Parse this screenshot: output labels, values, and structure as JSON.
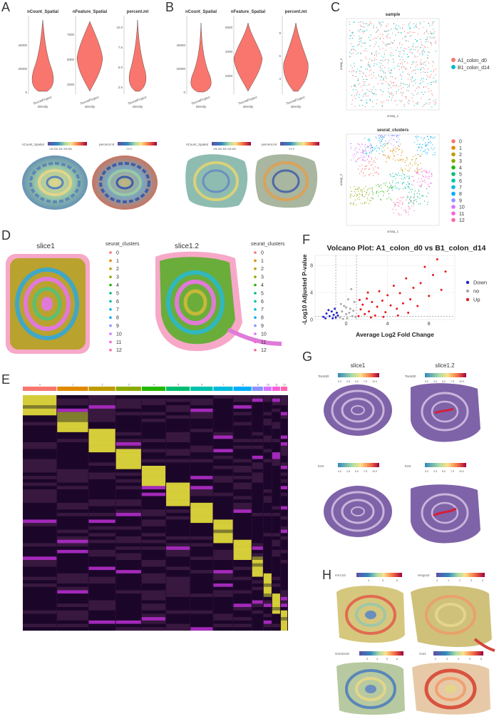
{
  "panels": {
    "A": {
      "letter": "A",
      "violins": [
        {
          "title": "nCount_Spatial",
          "ticks": [
            "40000",
            "20000",
            "0"
          ],
          "xtick": "SeuratProject"
        },
        {
          "title": "nFeature_Spatial",
          "ticks": [
            "7500",
            "5000",
            "2500"
          ],
          "xtick": "SeuratProject"
        },
        {
          "title": "percent.mt",
          "ticks": [
            "10.0",
            "7.5",
            "5.0",
            "2.5"
          ],
          "xtick": "SeuratProject"
        }
      ],
      "xlabel": "Identity",
      "spatial": [
        {
          "legend_title": "nCount_Spatial",
          "legend_ticks": "10k 20k 30k 40k 50k"
        },
        {
          "legend_title": "percent.mt",
          "legend_ticks": "3   6   9"
        }
      ]
    },
    "B": {
      "letter": "B",
      "violins": [
        {
          "title": "nCount_Spatial",
          "ticks": [
            "40000",
            "20000",
            "0"
          ],
          "xtick": "SeuratProject"
        },
        {
          "title": "nFeature_Spatial",
          "ticks": [
            "6000",
            "4000",
            "2000"
          ],
          "xtick": "SeuratProject"
        },
        {
          "title": "percent.mt",
          "ticks": [
            "9",
            "6",
            "3"
          ],
          "xtick": "SeuratProject"
        }
      ],
      "xlabel": "Identity",
      "spatial": [
        {
          "legend_title": "nCount_Spatial",
          "legend_ticks": "10k 20k 30k 40k 50k"
        },
        {
          "legend_title": "percent.mt",
          "legend_ticks": "3   6   9"
        }
      ]
    },
    "C": {
      "letter": "C",
      "top_title": "sample",
      "top_legend": [
        "A1_colon_d0",
        "B1_colon_d14"
      ],
      "top_colors": [
        "#f8766d",
        "#00bfc4"
      ],
      "bottom_title": "seurat_clusters",
      "clusters": [
        "0",
        "1",
        "2",
        "3",
        "4",
        "5",
        "6",
        "7",
        "8",
        "9",
        "10",
        "11",
        "12"
      ],
      "cluster_colors": [
        "#f8766d",
        "#e18a00",
        "#be9c00",
        "#8cab00",
        "#24b700",
        "#00be70",
        "#00c1ab",
        "#00bbda",
        "#00acfc",
        "#8b93ff",
        "#d575fe",
        "#f962dd",
        "#ff65ac"
      ],
      "xlabel": "umap_1",
      "ylabel": "umap_2",
      "xticks": [
        "-5",
        "0",
        "5"
      ],
      "yticks": [
        "4",
        "2",
        "0",
        "-2",
        "-4"
      ]
    },
    "D": {
      "letter": "D",
      "slices": [
        {
          "title": "slice1",
          "legend_title": "seurat_clusters"
        },
        {
          "title": "slice1.2",
          "legend_title": "seurat_clusters"
        }
      ]
    },
    "E": {
      "letter": "E",
      "header_labels": [
        "0",
        "1",
        "2",
        "3",
        "4",
        "5",
        "6",
        "7",
        "8",
        "9",
        "10",
        "11",
        "12"
      ]
    },
    "F": {
      "letter": "F",
      "legend": [
        "Down",
        "no",
        "Up"
      ],
      "legend_colors": [
        "#2222cc",
        "#aaaaaa",
        "#e8191c"
      ]
    },
    "G": {
      "letter": "G",
      "slices": [
        "slice1",
        "slice1.2"
      ],
      "genes": [
        {
          "name": "Tacstd2",
          "ticks": [
            "0.0",
            "2.5",
            "5.0",
            "7.5",
            "10.0"
          ]
        },
        {
          "name": "Krt4",
          "ticks": [
            "0.0",
            "2.5",
            "5.0",
            "7.5",
            "10.0"
          ]
        }
      ]
    },
    "H": {
      "letter": "H",
      "genes": [
        {
          "name": "mt-Co3",
          "ticks": [
            "4",
            "5",
            "6"
          ]
        },
        {
          "name": "Hmgcs2",
          "ticks": [
            "0",
            "1",
            "2",
            "3",
            "4"
          ]
        },
        {
          "name": "Gm42418",
          "ticks": [
            "3",
            "4",
            "5",
            "6"
          ]
        },
        {
          "name": "Car1",
          "ticks": [
            "2",
            "3",
            "4",
            "5",
            "6"
          ]
        }
      ]
    }
  },
  "chart_data": {
    "type": "scatter",
    "title": "Volcano Plot: A1_colon_d0 vs B1_colon_d14",
    "xlabel": "Average Log2 Fold Change",
    "ylabel": "-Log10 Adjusted P-value",
    "xlim": [
      -3,
      10.5
    ],
    "ylim": [
      0,
      9.5
    ],
    "xticks": [
      0,
      4,
      8
    ],
    "yticks": [
      0,
      4,
      8
    ],
    "legend_position": "right",
    "series": [
      {
        "name": "Down",
        "color": "#2222cc",
        "points": [
          [
            -2.2,
            0.4
          ],
          [
            -1.9,
            0.9
          ],
          [
            -1.6,
            0.5
          ],
          [
            -1.4,
            1.2
          ],
          [
            -1.2,
            0.7
          ],
          [
            -1.0,
            0.3
          ],
          [
            -0.9,
            1.0
          ],
          [
            -0.8,
            0.6
          ],
          [
            -2.0,
            0.2
          ],
          [
            -1.7,
            1.4
          ],
          [
            -1.3,
            0.2
          ],
          [
            -1.1,
            1.6
          ]
        ]
      },
      {
        "name": "no",
        "color": "#aaaaaa",
        "points": [
          [
            -0.6,
            0.3
          ],
          [
            -0.4,
            1.2
          ],
          [
            -0.2,
            2.0
          ],
          [
            0.0,
            0.8
          ],
          [
            0.2,
            3.0
          ],
          [
            0.4,
            1.6
          ],
          [
            0.6,
            0.5
          ],
          [
            0.8,
            2.6
          ],
          [
            -0.3,
            0.1
          ],
          [
            0.1,
            0.2
          ],
          [
            0.3,
            1.0
          ],
          [
            0.5,
            4.5
          ],
          [
            -0.5,
            2.3
          ],
          [
            0.7,
            1.3
          ],
          [
            0.9,
            0.4
          ],
          [
            0.0,
            1.8
          ]
        ]
      },
      {
        "name": "Up",
        "color": "#e8191c",
        "points": [
          [
            1.2,
            0.5
          ],
          [
            1.4,
            1.5
          ],
          [
            1.6,
            2.2
          ],
          [
            1.8,
            0.8
          ],
          [
            2.0,
            3.1
          ],
          [
            2.2,
            1.2
          ],
          [
            2.5,
            2.6
          ],
          [
            2.8,
            0.6
          ],
          [
            3.0,
            1.9
          ],
          [
            3.2,
            4.2
          ],
          [
            3.5,
            2.8
          ],
          [
            3.8,
            1.1
          ],
          [
            4.0,
            3.6
          ],
          [
            4.3,
            2.1
          ],
          [
            4.6,
            5.0
          ],
          [
            4.9,
            1.6
          ],
          [
            5.2,
            3.9
          ],
          [
            5.5,
            2.4
          ],
          [
            5.8,
            6.1
          ],
          [
            6.2,
            3.0
          ],
          [
            6.5,
            4.7
          ],
          [
            6.9,
            2.0
          ],
          [
            7.2,
            5.4
          ],
          [
            7.6,
            7.8
          ],
          [
            8.0,
            3.5
          ],
          [
            8.4,
            6.6
          ],
          [
            8.8,
            8.9
          ],
          [
            9.2,
            4.4
          ],
          [
            9.6,
            7.1
          ],
          [
            2.4,
            0.3
          ],
          [
            3.6,
            0.4
          ],
          [
            5.0,
            0.6
          ],
          [
            6.0,
            1.0
          ],
          [
            1.3,
            2.9
          ],
          [
            2.1,
            4.0
          ]
        ]
      }
    ]
  }
}
